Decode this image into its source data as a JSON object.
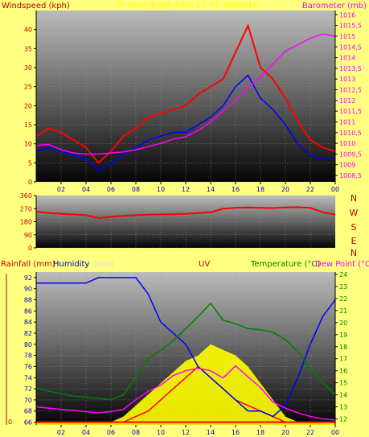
{
  "header": {
    "wind_label": "Windspeed (kph)",
    "title": "24 hour graph from 17:51 30/04/16",
    "pressure_label": "Barometer (mb)"
  },
  "wind_dir_labels": [
    "N",
    "W",
    "S",
    "E",
    "N"
  ],
  "bottom_labels": {
    "rainfall": "Rainfall (mm)",
    "humidity": "Humidity",
    "solar": "Solar",
    "uv": "UV",
    "temperature": "Temperature (°C)",
    "dewpoint": "Dew Point (°C)"
  },
  "colors": {
    "background": "#ffff80",
    "wind_gust": "#ff0000",
    "wind_avg": "#0000ff",
    "pressure": "#ff00ff",
    "wind_dir": "#ff0000",
    "humidity": "#0000ff",
    "solar": "#ffff00",
    "uv": "#ff0000",
    "temperature": "#008000",
    "dewpoint": "#ff00ff",
    "rainfall": "#ff0000",
    "label_blue": "#0000c0",
    "label_red": "#c00000",
    "label_green": "#008000",
    "label_magenta": "#ff00ff"
  },
  "chart_data": [
    {
      "type": "line",
      "name": "wind-pressure",
      "x_ticks": [
        "02",
        "04",
        "06",
        "08",
        "10",
        "12",
        "14",
        "16",
        "18",
        "20",
        "22",
        "00"
      ],
      "y_left": {
        "ylim": [
          0,
          45
        ],
        "ticks": [
          0,
          5,
          10,
          15,
          20,
          25,
          30,
          35,
          40
        ]
      },
      "y_right": {
        "ylim": [
          1008.2,
          1016.2
        ],
        "ticks": [
          "1008,5",
          "1009",
          "1009,5",
          "1010",
          "1010,5",
          "1011",
          "1011,5",
          "1012",
          "1012,5",
          "1013",
          "1013,5",
          "1014",
          "1014,5",
          "1015",
          "1015,5",
          "1016"
        ]
      },
      "x": [
        0,
        1,
        2,
        3,
        4,
        5,
        6,
        7,
        8,
        9,
        10,
        11,
        12,
        13,
        14,
        15,
        16,
        17,
        18,
        19,
        20,
        21,
        22,
        23,
        24
      ],
      "series": [
        {
          "name": "gust",
          "axis": "left",
          "values": [
            12,
            14,
            13,
            11,
            9,
            5,
            8,
            12,
            14,
            17,
            18,
            19,
            20,
            23,
            25,
            27,
            34,
            41,
            30,
            27,
            22,
            16,
            11,
            9,
            8
          ]
        },
        {
          "name": "average",
          "axis": "left",
          "values": [
            8,
            9,
            8,
            7,
            6,
            3,
            5,
            7,
            9,
            11,
            12,
            13,
            13,
            15,
            17,
            20,
            25,
            28,
            22,
            19,
            15,
            10,
            7,
            6,
            6
          ]
        },
        {
          "name": "pressure",
          "axis": "right",
          "values": [
            1009.9,
            1009.95,
            1009.7,
            1009.55,
            1009.5,
            1009.5,
            1009.55,
            1009.6,
            1009.7,
            1009.85,
            1010.0,
            1010.2,
            1010.3,
            1010.6,
            1011.0,
            1011.5,
            1012.0,
            1012.6,
            1013.1,
            1013.7,
            1014.3,
            1014.6,
            1014.9,
            1015.1,
            1015.0
          ]
        }
      ]
    },
    {
      "type": "line",
      "name": "wind-direction",
      "x_ticks": [
        "02",
        "04",
        "06",
        "08",
        "10",
        "12",
        "14",
        "16",
        "18",
        "20",
        "22",
        "00"
      ],
      "y": {
        "ylim": [
          0,
          360
        ],
        "ticks": [
          0,
          90,
          180,
          270,
          360
        ]
      },
      "x": [
        0,
        1,
        2,
        3,
        4,
        5,
        6,
        7,
        8,
        9,
        10,
        11,
        12,
        13,
        14,
        15,
        16,
        17,
        18,
        19,
        20,
        21,
        22,
        23,
        24
      ],
      "series": [
        {
          "name": "direction",
          "values": [
            250,
            240,
            235,
            230,
            225,
            205,
            215,
            220,
            225,
            228,
            230,
            232,
            235,
            240,
            245,
            270,
            275,
            278,
            276,
            274,
            278,
            280,
            275,
            245,
            230
          ]
        }
      ]
    },
    {
      "type": "line",
      "name": "temp-humidity",
      "x_ticks": [
        "02",
        "04",
        "06",
        "08",
        "10",
        "12",
        "14",
        "16",
        "18",
        "20",
        "22",
        "00"
      ],
      "y_left": {
        "ylim": [
          65.5,
          93
        ],
        "ticks": [
          66,
          68,
          70,
          72,
          74,
          76,
          78,
          80,
          82,
          84,
          86,
          88,
          90,
          92
        ]
      },
      "y_right": {
        "ylim": [
          11.5,
          24.2
        ],
        "ticks": [
          12,
          13,
          14,
          15,
          16,
          17,
          18,
          19,
          20,
          21,
          22,
          23,
          24
        ]
      },
      "x": [
        0,
        1,
        2,
        3,
        4,
        5,
        6,
        7,
        8,
        9,
        10,
        11,
        12,
        13,
        14,
        15,
        16,
        17,
        18,
        19,
        20,
        21,
        22,
        23,
        24
      ],
      "series": [
        {
          "name": "humidity",
          "axis": "left",
          "values": [
            91,
            91,
            91,
            91,
            91,
            92,
            92,
            92,
            92,
            89,
            84,
            82,
            80,
            76,
            74,
            72,
            70,
            68,
            68,
            67,
            69,
            74,
            80,
            85,
            88
          ]
        },
        {
          "name": "temperature",
          "axis": "right",
          "values": [
            14.6,
            14.3,
            14.1,
            13.9,
            13.8,
            13.7,
            13.6,
            14.0,
            15.5,
            17.0,
            17.7,
            18.5,
            19.5,
            20.5,
            21.6,
            20.2,
            19.9,
            19.5,
            19.4,
            19.2,
            18.6,
            17.6,
            16.2,
            15.0,
            14.0
          ]
        },
        {
          "name": "dewpoint",
          "axis": "right",
          "values": [
            13.0,
            12.9,
            12.8,
            12.7,
            12.6,
            12.5,
            12.6,
            12.8,
            13.6,
            14.3,
            14.8,
            15.6,
            16.0,
            16.2,
            16.0,
            15.4,
            16.4,
            15.5,
            14.6,
            13.4,
            12.9,
            12.5,
            12.2,
            12.0,
            11.9
          ]
        },
        {
          "name": "solar",
          "axis": "left",
          "values": [
            66,
            66,
            66,
            66,
            66,
            66,
            66,
            67,
            69,
            71,
            73,
            75,
            77,
            78,
            80,
            79,
            78,
            76,
            73,
            70,
            67,
            66,
            66,
            66,
            66
          ]
        },
        {
          "name": "uv",
          "axis": "left",
          "values": [
            66,
            66,
            66,
            66,
            66,
            66,
            66,
            66,
            67,
            68,
            70,
            72,
            74,
            76,
            74,
            72,
            70,
            69,
            68,
            67,
            66,
            66,
            66,
            66,
            66
          ]
        },
        {
          "name": "rainfall",
          "axis": "left",
          "values": [
            66,
            66,
            66,
            66,
            66,
            66,
            66,
            66,
            66,
            66,
            66,
            66,
            66,
            66,
            66,
            66,
            66,
            66,
            66,
            66,
            66,
            66,
            66,
            66,
            66
          ]
        }
      ]
    }
  ]
}
